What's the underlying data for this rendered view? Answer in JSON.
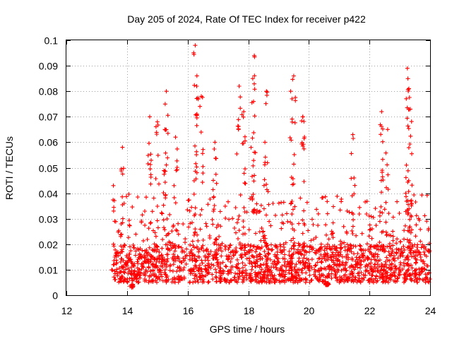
{
  "chart_data": {
    "type": "scatter",
    "title": "Day 205 of 2024, Rate Of TEC Index for receiver p422",
    "xlabel": "GPS time / hours",
    "ylabel": "ROTI / TECUs",
    "xlim": [
      12,
      24
    ],
    "ylim": [
      0,
      0.1
    ],
    "x_ticks": [
      "12",
      "14",
      "16",
      "18",
      "20",
      "22",
      "24"
    ],
    "y_ticks": [
      "0",
      "0.01",
      "0.02",
      "0.03",
      "0.04",
      "0.05",
      "0.06",
      "0.07",
      "0.08",
      "0.09",
      "0.1"
    ],
    "grid": true,
    "marker": "+",
    "color": "#ff0000",
    "series": [
      {
        "name": "ROTI",
        "x_start": 13.55,
        "x_end": 24.0,
        "baseline_range": [
          0.005,
          0.02
        ],
        "typical_max": 0.04,
        "notable_points": [
          {
            "x": 13.55,
            "y": 0.043
          },
          {
            "x": 13.85,
            "y": 0.058
          },
          {
            "x": 14.15,
            "y": 0.003
          },
          {
            "x": 14.75,
            "y": 0.07
          },
          {
            "x": 15.0,
            "y": 0.068
          },
          {
            "x": 15.3,
            "y": 0.08
          },
          {
            "x": 15.25,
            "y": 0.065
          },
          {
            "x": 15.6,
            "y": 0.062
          },
          {
            "x": 16.25,
            "y": 0.098
          },
          {
            "x": 16.3,
            "y": 0.082
          },
          {
            "x": 16.45,
            "y": 0.078
          },
          {
            "x": 16.9,
            "y": 0.06
          },
          {
            "x": 17.7,
            "y": 0.082
          },
          {
            "x": 17.85,
            "y": 0.072
          },
          {
            "x": 18.2,
            "y": 0.094
          },
          {
            "x": 18.15,
            "y": 0.085
          },
          {
            "x": 18.6,
            "y": 0.08
          },
          {
            "x": 18.55,
            "y": 0.06
          },
          {
            "x": 19.5,
            "y": 0.086
          },
          {
            "x": 19.4,
            "y": 0.08
          },
          {
            "x": 19.8,
            "y": 0.07
          },
          {
            "x": 20.6,
            "y": 0.004
          },
          {
            "x": 21.45,
            "y": 0.063
          },
          {
            "x": 22.4,
            "y": 0.072
          },
          {
            "x": 22.6,
            "y": 0.065
          },
          {
            "x": 23.25,
            "y": 0.089
          },
          {
            "x": 23.3,
            "y": 0.081
          },
          {
            "x": 23.35,
            "y": 0.073
          }
        ]
      }
    ]
  }
}
